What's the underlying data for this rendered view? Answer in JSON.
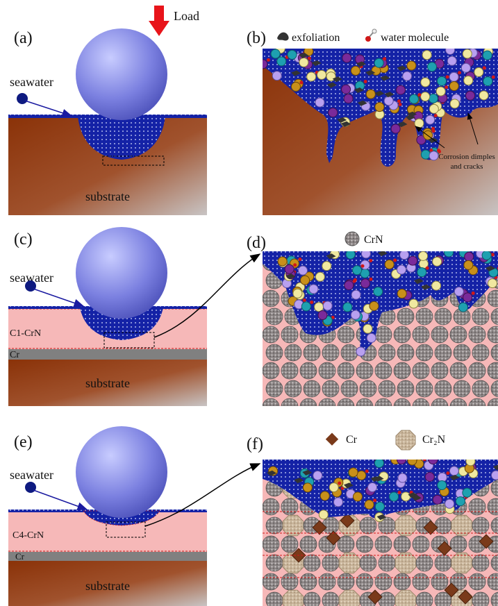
{
  "panels": [
    {
      "label": "(a)",
      "load": "Load",
      "seawater": "seawater",
      "substrate": "substrate"
    },
    {
      "label": "(b)",
      "legend": [
        "exfoliation",
        "water molecule"
      ],
      "annotation": [
        "Corrosion dimples",
        "and cracks"
      ]
    },
    {
      "label": "(c)",
      "seawater": "seawater",
      "coating": "C1-CrN",
      "interlayer": "Cr",
      "substrate": "substrate"
    },
    {
      "label": "(d)",
      "legend": [
        "CrN"
      ]
    },
    {
      "label": "(e)",
      "seawater": "seawater",
      "coating": "C4-CrN",
      "interlayer": "Cr",
      "substrate": "substrate"
    },
    {
      "label": "(f)",
      "legend": [
        "Cr",
        "Cr₂N"
      ]
    }
  ]
}
